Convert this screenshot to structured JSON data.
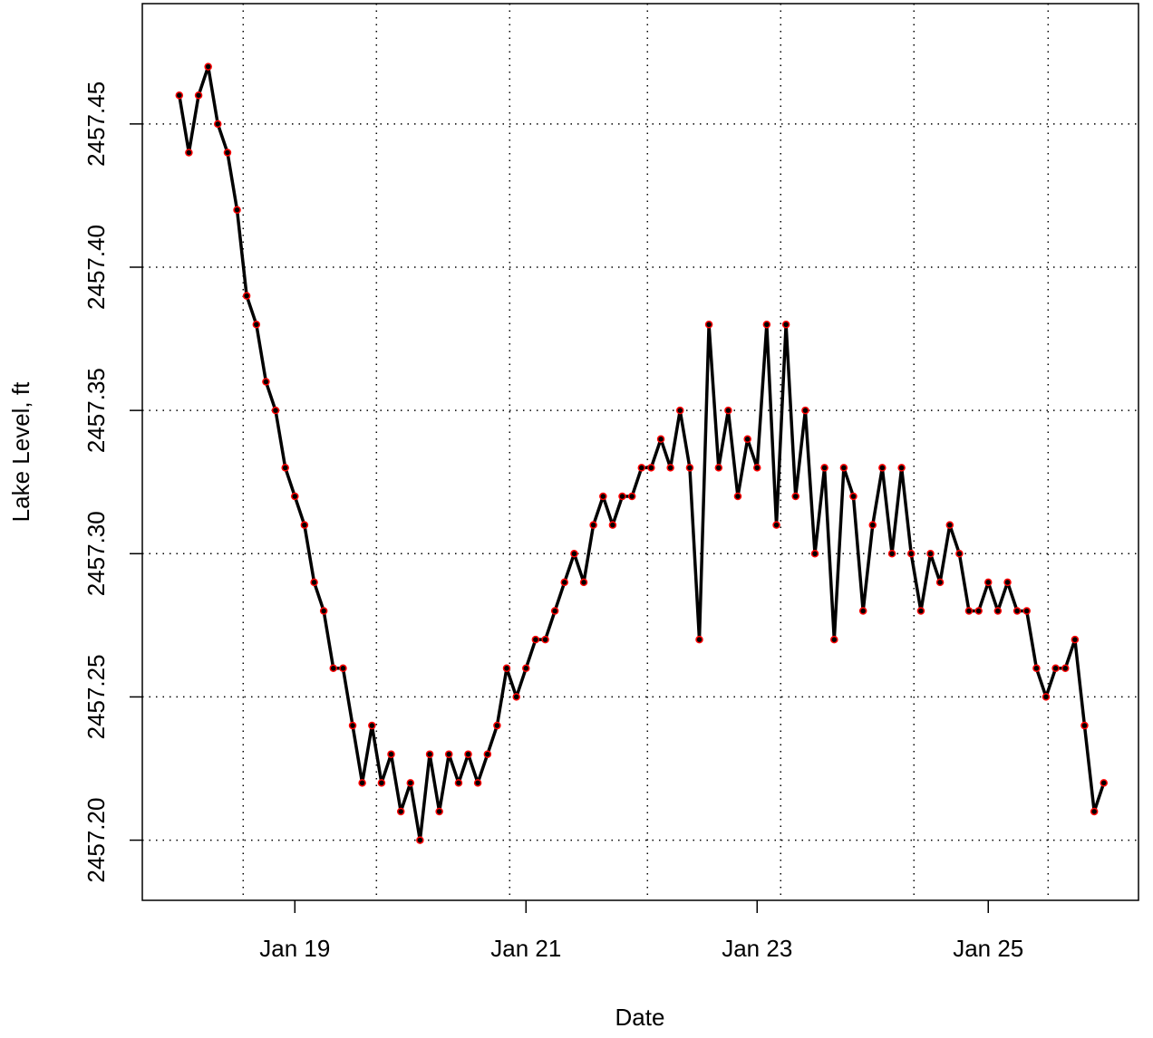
{
  "chart_data": {
    "type": "line",
    "x_label": "Date",
    "y_label": "Lake Level, ft",
    "x": [
      18.0,
      18.083,
      18.167,
      18.25,
      18.333,
      18.417,
      18.5,
      18.583,
      18.667,
      18.75,
      18.833,
      18.917,
      19.0,
      19.083,
      19.167,
      19.25,
      19.333,
      19.417,
      19.5,
      19.583,
      19.667,
      19.75,
      19.833,
      19.917,
      20.0,
      20.083,
      20.167,
      20.25,
      20.333,
      20.417,
      20.5,
      20.583,
      20.667,
      20.75,
      20.833,
      20.917,
      21.0,
      21.083,
      21.167,
      21.25,
      21.333,
      21.417,
      21.5,
      21.583,
      21.667,
      21.75,
      21.833,
      21.917,
      22.0,
      22.083,
      22.167,
      22.25,
      22.333,
      22.417,
      22.5,
      22.583,
      22.667,
      22.75,
      22.833,
      22.917,
      23.0,
      23.083,
      23.167,
      23.25,
      23.333,
      23.417,
      23.5,
      23.583,
      23.667,
      23.75,
      23.833,
      23.917,
      24.0,
      24.083,
      24.167,
      24.25,
      24.333,
      24.417,
      24.5,
      24.583,
      24.667,
      24.75,
      24.833,
      24.917,
      25.0,
      25.083,
      25.167,
      25.25,
      25.333,
      25.417,
      25.5,
      25.583,
      25.667,
      25.75,
      25.833,
      25.917,
      26.0
    ],
    "series": [
      {
        "name": "Lake Level",
        "color": "#000000",
        "point_color": "#ff0000",
        "values": [
          2457.46,
          2457.44,
          2457.46,
          2457.47,
          2457.45,
          2457.44,
          2457.42,
          2457.39,
          2457.38,
          2457.36,
          2457.35,
          2457.33,
          2457.32,
          2457.31,
          2457.29,
          2457.28,
          2457.26,
          2457.26,
          2457.24,
          2457.22,
          2457.24,
          2457.22,
          2457.23,
          2457.21,
          2457.22,
          2457.2,
          2457.23,
          2457.21,
          2457.23,
          2457.22,
          2457.23,
          2457.22,
          2457.23,
          2457.24,
          2457.26,
          2457.25,
          2457.26,
          2457.27,
          2457.27,
          2457.28,
          2457.29,
          2457.3,
          2457.29,
          2457.31,
          2457.32,
          2457.31,
          2457.32,
          2457.32,
          2457.33,
          2457.33,
          2457.34,
          2457.33,
          2457.35,
          2457.33,
          2457.27,
          2457.38,
          2457.33,
          2457.35,
          2457.32,
          2457.34,
          2457.33,
          2457.38,
          2457.31,
          2457.38,
          2457.32,
          2457.35,
          2457.3,
          2457.33,
          2457.27,
          2457.33,
          2457.32,
          2457.28,
          2457.31,
          2457.33,
          2457.3,
          2457.33,
          2457.3,
          2457.28,
          2457.3,
          2457.29,
          2457.31,
          2457.3,
          2457.28,
          2457.28,
          2457.29,
          2457.28,
          2457.29,
          2457.28,
          2457.28,
          2457.26,
          2457.25,
          2457.26,
          2457.26,
          2457.27,
          2457.24,
          2457.21,
          2457.22
        ]
      }
    ],
    "xlim": [
      17.68,
      26.3
    ],
    "xticks": [
      {
        "value": 19,
        "label": "Jan 19"
      },
      {
        "value": 21,
        "label": "Jan 21"
      },
      {
        "value": 23,
        "label": "Jan 23"
      },
      {
        "value": 25,
        "label": "Jan 25"
      }
    ],
    "xgrid": [
      18.553,
      19.706,
      20.859,
      22.051,
      23.204,
      24.357,
      25.518
    ],
    "ylim": [
      2457.179,
      2457.492
    ],
    "yticks": [
      {
        "value": 2457.2,
        "label": "2457.20"
      },
      2457.25,
      {
        "value": 2457.3,
        "label": "2457.30"
      },
      2457.35,
      {
        "value": 2457.4,
        "label": "2457.40"
      },
      2457.45
    ],
    "grid": true
  }
}
